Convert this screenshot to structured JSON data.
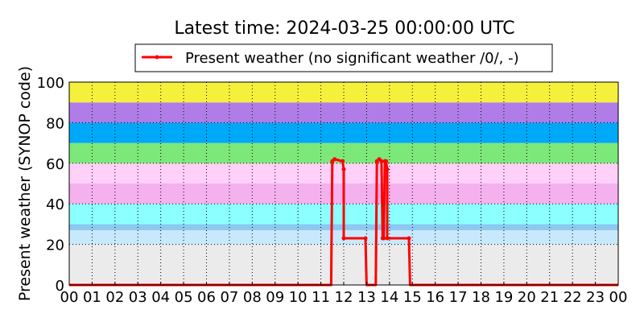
{
  "chart_data": {
    "type": "line",
    "title": "Latest time: 2024-03-25 00:00:00 UTC",
    "xlabel": "",
    "ylabel": "Present weather (SYNOP code)",
    "xlim": [
      0,
      24
    ],
    "ylim": [
      0,
      100
    ],
    "x_ticks": [
      "00",
      "01",
      "02",
      "03",
      "04",
      "05",
      "06",
      "07",
      "08",
      "09",
      "10",
      "11",
      "12",
      "13",
      "14",
      "15",
      "16",
      "17",
      "18",
      "19",
      "20",
      "21",
      "22",
      "23",
      "00"
    ],
    "y_ticks": [
      0,
      20,
      40,
      60,
      80,
      100
    ],
    "grid": true,
    "legend_position": "top-center",
    "bands": [
      {
        "from": 0,
        "to": 20,
        "color": "#ebebeb"
      },
      {
        "from": 20,
        "to": 27,
        "color": "#c8e8fc"
      },
      {
        "from": 27,
        "to": 30,
        "color": "#8cc8f0"
      },
      {
        "from": 30,
        "to": 40,
        "color": "#8cffff"
      },
      {
        "from": 40,
        "to": 50,
        "color": "#f5b0ee"
      },
      {
        "from": 50,
        "to": 60,
        "color": "#ffd0f8"
      },
      {
        "from": 60,
        "to": 70,
        "color": "#7de87a"
      },
      {
        "from": 70,
        "to": 80,
        "color": "#00a8f8"
      },
      {
        "from": 80,
        "to": 90,
        "color": "#b07de8"
      },
      {
        "from": 90,
        "to": 100,
        "color": "#f5f03c"
      }
    ],
    "series": [
      {
        "name": "Present weather (no significant weather /0/, -)",
        "color": "#ff0000",
        "points": [
          [
            0,
            0
          ],
          [
            11.45,
            0
          ],
          [
            11.5,
            61
          ],
          [
            11.6,
            62
          ],
          [
            11.95,
            61
          ],
          [
            12.0,
            57
          ],
          [
            12.0,
            23
          ],
          [
            12.95,
            23
          ],
          [
            13.0,
            0
          ],
          [
            13.4,
            0
          ],
          [
            13.45,
            61
          ],
          [
            13.55,
            62
          ],
          [
            13.65,
            61
          ],
          [
            13.7,
            23
          ],
          [
            13.75,
            23
          ],
          [
            13.8,
            61
          ],
          [
            13.85,
            61
          ],
          [
            13.9,
            57
          ],
          [
            13.9,
            23
          ],
          [
            14.85,
            23
          ],
          [
            14.9,
            0
          ],
          [
            24,
            0
          ]
        ]
      }
    ]
  }
}
